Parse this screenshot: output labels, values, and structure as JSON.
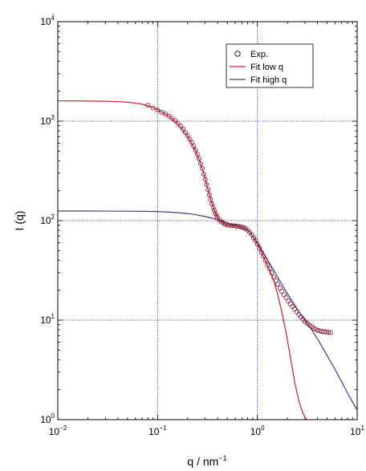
{
  "chart_data": {
    "type": "scatter",
    "xscale": "log",
    "yscale": "log",
    "xlim": [
      0.01,
      10
    ],
    "ylim": [
      1,
      10000
    ],
    "xlabel": "q / nm",
    "xlabel_sup": "−1",
    "ylabel": "I (q)",
    "grid": true,
    "legend_position": "top-right",
    "x_ticks": [
      {
        "base": "10",
        "exp": "−2",
        "value": 0.01
      },
      {
        "base": "10",
        "exp": "−1",
        "value": 0.1
      },
      {
        "base": "10",
        "exp": "0",
        "value": 1
      },
      {
        "base": "10",
        "exp": "1",
        "value": 10
      }
    ],
    "y_ticks": [
      {
        "base": "10",
        "exp": "0",
        "value": 1
      },
      {
        "base": "10",
        "exp": "1",
        "value": 10
      },
      {
        "base": "10",
        "exp": "2",
        "value": 100
      },
      {
        "base": "10",
        "exp": "3",
        "value": 1000
      },
      {
        "base": "10",
        "exp": "4",
        "value": 10000
      }
    ],
    "series": [
      {
        "name": "Exp.",
        "kind": "markers",
        "color": "#8b1a2e",
        "points": [
          [
            0.08,
            1450
          ],
          [
            0.09,
            1360
          ],
          [
            0.1,
            1290
          ],
          [
            0.11,
            1230
          ],
          [
            0.12,
            1180
          ],
          [
            0.13,
            1120
          ],
          [
            0.14,
            1070
          ],
          [
            0.15,
            1010
          ],
          [
            0.16,
            950
          ],
          [
            0.17,
            890
          ],
          [
            0.18,
            830
          ],
          [
            0.19,
            770
          ],
          [
            0.2,
            715
          ],
          [
            0.21,
            660
          ],
          [
            0.22,
            610
          ],
          [
            0.23,
            560
          ],
          [
            0.24,
            510
          ],
          [
            0.25,
            465
          ],
          [
            0.26,
            420
          ],
          [
            0.27,
            375
          ],
          [
            0.28,
            335
          ],
          [
            0.29,
            295
          ],
          [
            0.3,
            260
          ],
          [
            0.31,
            230
          ],
          [
            0.32,
            205
          ],
          [
            0.33,
            182
          ],
          [
            0.34,
            163
          ],
          [
            0.35,
            148
          ],
          [
            0.36,
            136
          ],
          [
            0.37,
            126
          ],
          [
            0.38,
            118
          ],
          [
            0.39,
            112
          ],
          [
            0.4,
            107
          ],
          [
            0.42,
            101
          ],
          [
            0.44,
            97
          ],
          [
            0.46,
            94
          ],
          [
            0.48,
            92
          ],
          [
            0.5,
            91
          ],
          [
            0.52,
            90
          ],
          [
            0.55,
            89
          ],
          [
            0.58,
            89
          ],
          [
            0.61,
            88
          ],
          [
            0.64,
            88
          ],
          [
            0.67,
            87
          ],
          [
            0.7,
            86
          ],
          [
            0.73,
            85
          ],
          [
            0.76,
            83
          ],
          [
            0.8,
            80
          ],
          [
            0.84,
            76
          ],
          [
            0.88,
            72
          ],
          [
            0.92,
            67
          ],
          [
            0.96,
            63
          ],
          [
            1.0,
            58
          ],
          [
            1.05,
            53
          ],
          [
            1.1,
            48
          ],
          [
            1.15,
            44
          ],
          [
            1.2,
            40
          ],
          [
            1.26,
            36
          ],
          [
            1.32,
            33
          ],
          [
            1.39,
            30
          ],
          [
            1.46,
            27
          ],
          [
            1.53,
            25
          ],
          [
            1.6,
            23
          ],
          [
            1.68,
            21
          ],
          [
            1.76,
            19.5
          ],
          [
            1.85,
            18
          ],
          [
            1.94,
            16.8
          ],
          [
            2.04,
            15.6
          ],
          [
            2.14,
            14.6
          ],
          [
            2.25,
            13.7
          ],
          [
            2.36,
            12.9
          ],
          [
            2.48,
            12.1
          ],
          [
            2.6,
            11.4
          ],
          [
            2.73,
            10.8
          ],
          [
            2.87,
            10.2
          ],
          [
            3.01,
            9.7
          ],
          [
            3.16,
            9.3
          ],
          [
            3.32,
            8.9
          ],
          [
            3.49,
            8.6
          ],
          [
            3.66,
            8.3
          ],
          [
            3.84,
            8.1
          ],
          [
            4.04,
            7.9
          ],
          [
            4.24,
            7.8
          ],
          [
            4.45,
            7.7
          ],
          [
            4.67,
            7.65
          ],
          [
            4.9,
            7.6
          ],
          [
            5.15,
            7.55
          ],
          [
            5.4,
            7.5
          ]
        ]
      },
      {
        "name": "Fit low q",
        "kind": "line",
        "color": "#cc1f2f",
        "points": [
          [
            0.01,
            1600
          ],
          [
            0.02,
            1595
          ],
          [
            0.03,
            1585
          ],
          [
            0.04,
            1570
          ],
          [
            0.05,
            1550
          ],
          [
            0.06,
            1520
          ],
          [
            0.07,
            1480
          ],
          [
            0.08,
            1430
          ],
          [
            0.09,
            1370
          ],
          [
            0.1,
            1300
          ],
          [
            0.12,
            1180
          ],
          [
            0.14,
            1060
          ],
          [
            0.16,
            940
          ],
          [
            0.18,
            820
          ],
          [
            0.2,
            710
          ],
          [
            0.22,
            600
          ],
          [
            0.24,
            505
          ],
          [
            0.26,
            415
          ],
          [
            0.28,
            335
          ],
          [
            0.3,
            265
          ],
          [
            0.32,
            205
          ],
          [
            0.34,
            165
          ],
          [
            0.36,
            137
          ],
          [
            0.38,
            118
          ],
          [
            0.4,
            107
          ],
          [
            0.44,
            97
          ],
          [
            0.48,
            92
          ],
          [
            0.52,
            90
          ],
          [
            0.58,
            89
          ],
          [
            0.64,
            88
          ],
          [
            0.7,
            86
          ],
          [
            0.76,
            83
          ],
          [
            0.84,
            76
          ],
          [
            0.92,
            67
          ],
          [
            1.0,
            58
          ],
          [
            1.1,
            48
          ],
          [
            1.2,
            40
          ],
          [
            1.32,
            32
          ],
          [
            1.46,
            25
          ],
          [
            1.6,
            18
          ],
          [
            1.76,
            12
          ],
          [
            1.94,
            7.5
          ],
          [
            2.14,
            4.3
          ],
          [
            2.36,
            2.4
          ],
          [
            2.6,
            1.55
          ],
          [
            2.87,
            1.15
          ],
          [
            3.1,
            1.0
          ]
        ]
      },
      {
        "name": "Fit high q",
        "kind": "line",
        "color": "#3a3d8f",
        "points": [
          [
            0.01,
            125
          ],
          [
            0.02,
            125
          ],
          [
            0.05,
            124.5
          ],
          [
            0.1,
            123.5
          ],
          [
            0.15,
            121
          ],
          [
            0.2,
            118
          ],
          [
            0.25,
            114
          ],
          [
            0.3,
            110
          ],
          [
            0.35,
            106
          ],
          [
            0.4,
            102
          ],
          [
            0.45,
            98
          ],
          [
            0.5,
            94
          ],
          [
            0.6,
            90
          ],
          [
            0.7,
            86
          ],
          [
            0.8,
            80
          ],
          [
            0.9,
            70
          ],
          [
            1.0,
            60
          ],
          [
            1.2,
            44
          ],
          [
            1.4,
            34
          ],
          [
            1.6,
            27
          ],
          [
            1.8,
            22
          ],
          [
            2.0,
            18.5
          ],
          [
            2.5,
            13
          ],
          [
            3.0,
            10
          ],
          [
            3.5,
            8
          ],
          [
            4.0,
            6.5
          ],
          [
            5.0,
            4.4
          ],
          [
            6.0,
            3.2
          ],
          [
            7.0,
            2.4
          ],
          [
            8.0,
            1.85
          ],
          [
            9.0,
            1.5
          ],
          [
            10.0,
            1.25
          ]
        ]
      }
    ]
  }
}
